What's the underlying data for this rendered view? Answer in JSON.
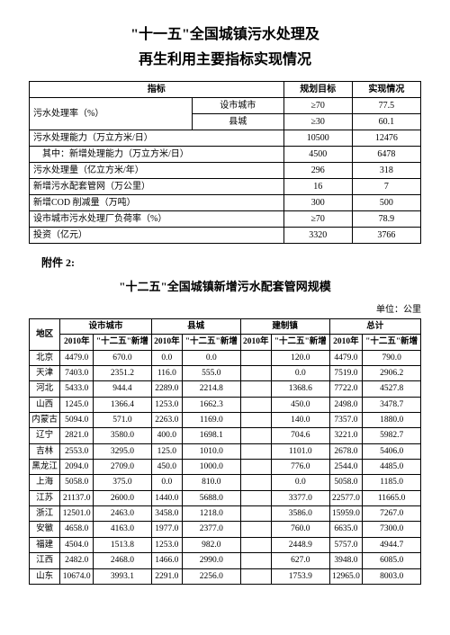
{
  "title_line1": "\"十一五\"全国城镇污水处理及",
  "title_line2": "再生利用主要指标实现情况",
  "table1": {
    "headers": {
      "indicator": "指标",
      "target": "规划目标",
      "result": "实现情况"
    },
    "rows": [
      {
        "indicator": "污水处理率（%）",
        "sub1": "设市城市",
        "sub2": "县城",
        "t1": "≥70",
        "r1": "77.5",
        "t2": "≥30",
        "r2": "60.1"
      },
      {
        "indicator": "污水处理能力（万立方米/日）",
        "target": "10500",
        "result": "12476"
      },
      {
        "indicator": "　其中：新增处理能力（万立方米/日）",
        "target": "4500",
        "result": "6478"
      },
      {
        "indicator": "污水处理量（亿立方米/年）",
        "target": "296",
        "result": "318"
      },
      {
        "indicator": "新增污水配套管网（万公里）",
        "target": "16",
        "result": "7"
      },
      {
        "indicator": "新增COD 削减量（万吨）",
        "target": "300",
        "result": "500"
      },
      {
        "indicator": "设市城市污水处理厂负荷率（%）",
        "target": "≥70",
        "result": "78.9"
      },
      {
        "indicator": "投资（亿元）",
        "target": "3320",
        "result": "3766"
      }
    ]
  },
  "appendix_label": "附件 2:",
  "title2": "\"十二五\"全国城镇新增污水配套管网规模",
  "unit_label": "单位：公里",
  "table2": {
    "group_headers": {
      "region": "地区",
      "city": "设市城市",
      "county": "县城",
      "town": "建制镇",
      "total": "总计"
    },
    "sub_headers": {
      "y2010": "2010年",
      "add": "\"十二五\"新增"
    },
    "rows": [
      {
        "region": "北京",
        "c1": "4479.0",
        "c2": "670.0",
        "x1": "0.0",
        "x2": "0.0",
        "j1": "",
        "j2": "120.0",
        "t1": "4479.0",
        "t2": "790.0"
      },
      {
        "region": "天津",
        "c1": "7403.0",
        "c2": "2351.2",
        "x1": "116.0",
        "x2": "555.0",
        "j1": "",
        "j2": "0.0",
        "t1": "7519.0",
        "t2": "2906.2"
      },
      {
        "region": "河北",
        "c1": "5433.0",
        "c2": "944.4",
        "x1": "2289.0",
        "x2": "2214.8",
        "j1": "",
        "j2": "1368.6",
        "t1": "7722.0",
        "t2": "4527.8"
      },
      {
        "region": "山西",
        "c1": "1245.0",
        "c2": "1366.4",
        "x1": "1253.0",
        "x2": "1662.3",
        "j1": "",
        "j2": "450.0",
        "t1": "2498.0",
        "t2": "3478.7"
      },
      {
        "region": "内蒙古",
        "c1": "5094.0",
        "c2": "571.0",
        "x1": "2263.0",
        "x2": "1169.0",
        "j1": "",
        "j2": "140.0",
        "t1": "7357.0",
        "t2": "1880.0"
      },
      {
        "region": "辽宁",
        "c1": "2821.0",
        "c2": "3580.0",
        "x1": "400.0",
        "x2": "1698.1",
        "j1": "",
        "j2": "704.6",
        "t1": "3221.0",
        "t2": "5982.7"
      },
      {
        "region": "吉林",
        "c1": "2553.0",
        "c2": "3295.0",
        "x1": "125.0",
        "x2": "1010.0",
        "j1": "",
        "j2": "1101.0",
        "t1": "2678.0",
        "t2": "5406.0"
      },
      {
        "region": "黑龙江",
        "c1": "2094.0",
        "c2": "2709.0",
        "x1": "450.0",
        "x2": "1000.0",
        "j1": "",
        "j2": "776.0",
        "t1": "2544.0",
        "t2": "4485.0"
      },
      {
        "region": "上海",
        "c1": "5058.0",
        "c2": "375.0",
        "x1": "0.0",
        "x2": "810.0",
        "j1": "",
        "j2": "0.0",
        "t1": "5058.0",
        "t2": "1185.0"
      },
      {
        "region": "江苏",
        "c1": "21137.0",
        "c2": "2600.0",
        "x1": "1440.0",
        "x2": "5688.0",
        "j1": "",
        "j2": "3377.0",
        "t1": "22577.0",
        "t2": "11665.0"
      },
      {
        "region": "浙江",
        "c1": "12501.0",
        "c2": "2463.0",
        "x1": "3458.0",
        "x2": "1218.0",
        "j1": "",
        "j2": "3586.0",
        "t1": "15959.0",
        "t2": "7267.0"
      },
      {
        "region": "安徽",
        "c1": "4658.0",
        "c2": "4163.0",
        "x1": "1977.0",
        "x2": "2377.0",
        "j1": "",
        "j2": "760.0",
        "t1": "6635.0",
        "t2": "7300.0"
      },
      {
        "region": "福建",
        "c1": "4504.0",
        "c2": "1513.8",
        "x1": "1253.0",
        "x2": "982.0",
        "j1": "",
        "j2": "2448.9",
        "t1": "5757.0",
        "t2": "4944.7"
      },
      {
        "region": "江西",
        "c1": "2482.0",
        "c2": "2468.0",
        "x1": "1466.0",
        "x2": "2990.0",
        "j1": "",
        "j2": "627.0",
        "t1": "3948.0",
        "t2": "6085.0"
      },
      {
        "region": "山东",
        "c1": "10674.0",
        "c2": "3993.1",
        "x1": "2291.0",
        "x2": "2256.0",
        "j1": "",
        "j2": "1753.9",
        "t1": "12965.0",
        "t2": "8003.0"
      }
    ]
  }
}
